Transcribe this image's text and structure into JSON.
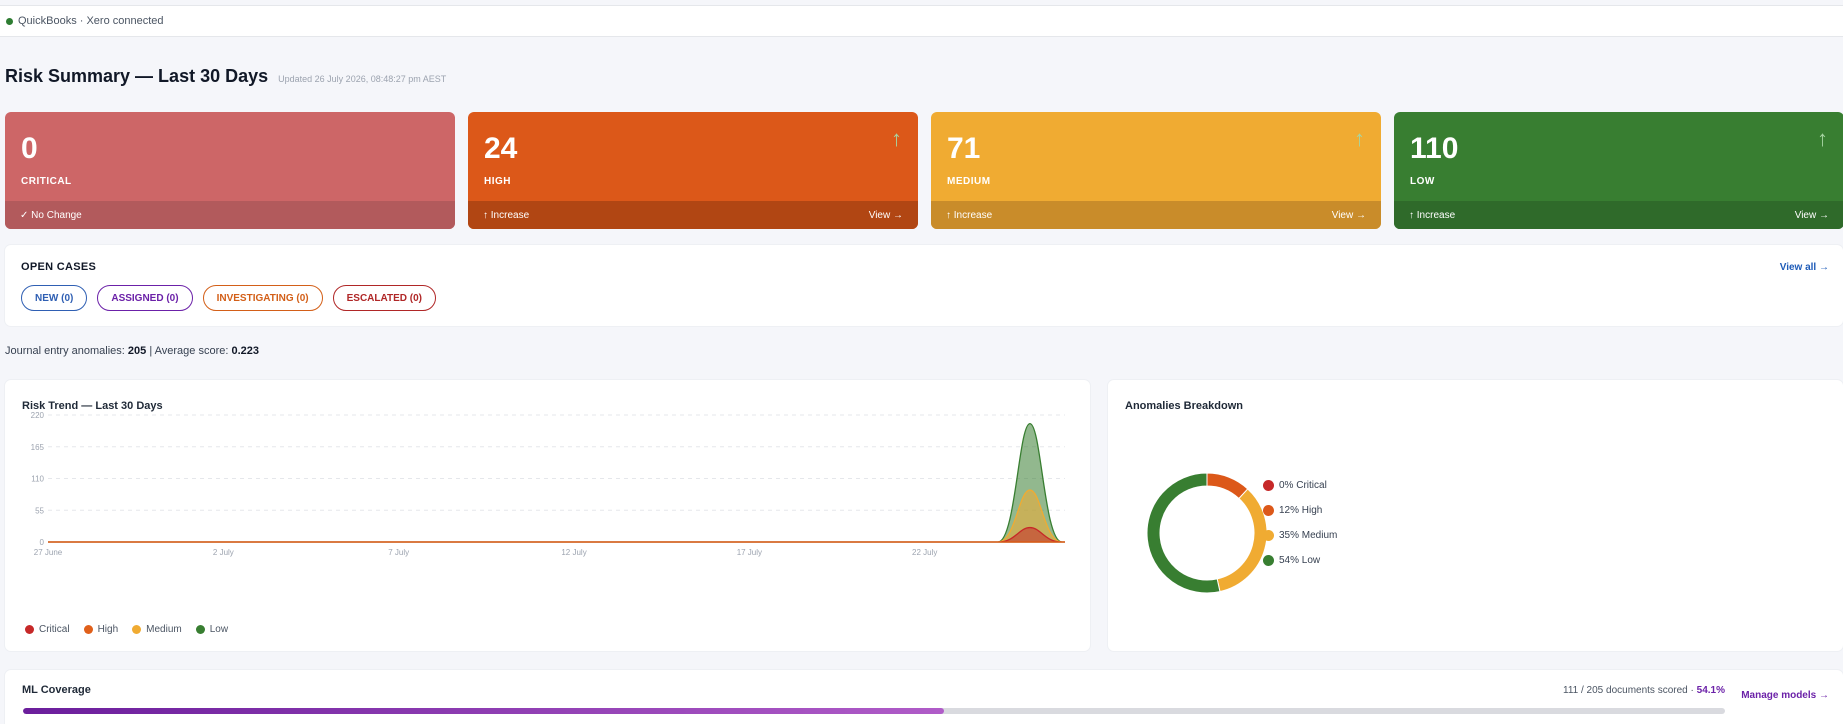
{
  "topbar": {
    "status_text": "QuickBooks · Xero connected",
    "status_color": "#2e7d32"
  },
  "header": {
    "title": "Risk Summary — Last 30 Days",
    "updated": "Updated 26 July 2026, 08:48:27 pm AEST"
  },
  "cards": [
    {
      "value": "0",
      "label": "CRITICAL",
      "change": "✓ No Change",
      "arrow": "",
      "view": "",
      "bg": "#cd6667",
      "foot_bg": "#b25a5c",
      "arrow_color": "#ffffff"
    },
    {
      "value": "24",
      "label": "HIGH",
      "change": "↑ Increase",
      "arrow": "↑",
      "view": "View →",
      "bg": "#dc5819",
      "foot_bg": "#b14613",
      "arrow_color": "#a7d4a2"
    },
    {
      "value": "71",
      "label": "MEDIUM",
      "change": "↑ Increase",
      "arrow": "↑",
      "view": "View →",
      "bg": "#f0ab32",
      "foot_bg": "#c98c2a",
      "arrow_color": "#a7d4a2"
    },
    {
      "value": "110",
      "label": "LOW",
      "change": "↑ Increase",
      "arrow": "↑",
      "view": "View →",
      "bg": "#387e31",
      "foot_bg": "#2f6a2a",
      "arrow_color": "#a7d4a2"
    }
  ],
  "open_cases": {
    "title": "OPEN CASES",
    "view_all": "View all →",
    "pills": [
      {
        "label": "NEW (0)",
        "color": "#2f5fb3"
      },
      {
        "label": "ASSIGNED (0)",
        "color": "#6b21a8"
      },
      {
        "label": "INVESTIGATING (0)",
        "color": "#d35f18"
      },
      {
        "label": "ESCALATED (0)",
        "color": "#b02727"
      }
    ]
  },
  "anomaly_summary": {
    "prefix": "Journal entry anomalies:",
    "count": "205",
    "separator": "| Average score:",
    "score": "0.223"
  },
  "trend": {
    "title": "Risk Trend — Last 30 Days",
    "legend": [
      {
        "label": "Critical",
        "color": "#c62828"
      },
      {
        "label": "High",
        "color": "#e0601a"
      },
      {
        "label": "Medium",
        "color": "#f0ab32"
      },
      {
        "label": "Low",
        "color": "#387e31"
      }
    ]
  },
  "chart_data": [
    {
      "type": "area",
      "title": "Risk Trend — Last 30 Days",
      "xlabel": "",
      "ylabel": "",
      "ylim": [
        0,
        220
      ],
      "yticks": [
        "0",
        "55",
        "110",
        "165",
        "220"
      ],
      "xticks": [
        "27 June",
        "2 July",
        "7 July",
        "12 July",
        "17 July",
        "22 July"
      ],
      "x_start": "2026-06-27",
      "x_end": "2026-07-26",
      "stacked": true,
      "grid": true,
      "legend_position": "bottom-left",
      "series": [
        {
          "name": "Critical",
          "peak_date": "2026-07-25",
          "peak_value": 25
        },
        {
          "name": "High",
          "peak_date": "2026-07-25",
          "peak_value": 0
        },
        {
          "name": "Medium",
          "peak_date": "2026-07-25",
          "peak_value": 90
        },
        {
          "name": "Low",
          "peak_date": "2026-07-25",
          "peak_value": 205
        }
      ]
    },
    {
      "type": "pie",
      "title": "Anomalies Breakdown",
      "donut": true,
      "legend_position": "right",
      "slices": [
        {
          "label": "0% Critical",
          "value": 0,
          "color": "#c62828"
        },
        {
          "label": "12% High",
          "value": 12,
          "color": "#dc5819"
        },
        {
          "label": "35% Medium",
          "value": 35,
          "color": "#f0ab32"
        },
        {
          "label": "54% Low",
          "value": 54,
          "color": "#387e31"
        }
      ]
    }
  ],
  "breakdown": {
    "title": "Anomalies Breakdown"
  },
  "ml": {
    "title": "ML Coverage",
    "stats": "111 / 205 documents scored",
    "dot_sep": "·",
    "pct": "54.1%",
    "progress": 0.541,
    "manage": "Manage models →"
  }
}
